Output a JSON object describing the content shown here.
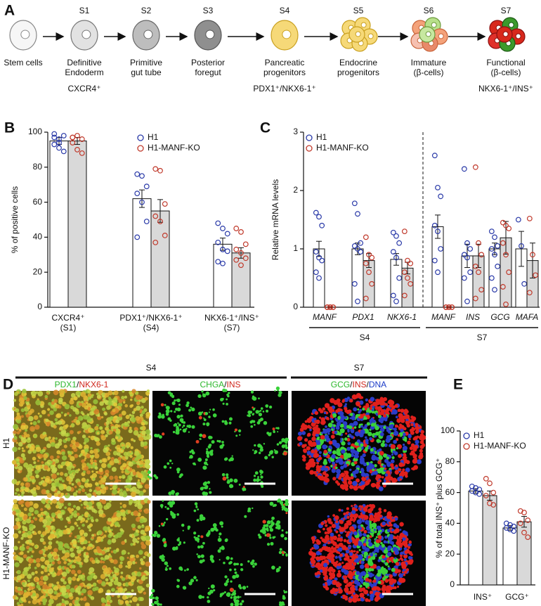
{
  "panel_a": {
    "label": "A",
    "stages": [
      {
        "name": [
          "Stem cells"
        ]
      },
      {
        "stage": "S1",
        "name": [
          "Definitive",
          "Endoderm"
        ],
        "marker": "CXCR4⁺"
      },
      {
        "stage": "S2",
        "name": [
          "Primitive",
          "gut tube"
        ]
      },
      {
        "stage": "S3",
        "name": [
          "Posterior",
          "foregut"
        ]
      },
      {
        "stage": "S4",
        "name": [
          "Pancreatic",
          "progenitors"
        ],
        "marker": "PDX1⁺/NKX6-1⁺"
      },
      {
        "stage": "S5",
        "name": [
          "Endocrine",
          "progenitors"
        ]
      },
      {
        "stage": "S6",
        "name": [
          "Immature",
          "(β-cells)"
        ]
      },
      {
        "stage": "S7",
        "name": [
          "Functional",
          "(β-cells)"
        ],
        "marker": "NKX6-1⁺/INS⁺"
      }
    ]
  },
  "chart_data": [
    {
      "type": "bar",
      "panel_label": "B",
      "ylabel": "% of positive cells",
      "categories": [
        [
          "CXCR4⁺",
          "(S1)"
        ],
        [
          "PDX1⁺/NKX6-1⁺",
          "(S4)"
        ],
        [
          "NKX6-1⁺/INS⁺",
          "(S7)"
        ]
      ],
      "series": [
        {
          "name": "H1",
          "color": "#2a3aa8",
          "fill": "#ffffff",
          "values": [
            95,
            62,
            36
          ],
          "errors": [
            2,
            5,
            3.5
          ],
          "points": [
            [
              93,
              96,
              98,
              99,
              91,
              89,
              97,
              94
            ],
            [
              76,
              75,
              69,
              65,
              60,
              49,
              40
            ],
            [
              48,
              45,
              42,
              37,
              33,
              32,
              26,
              25
            ]
          ]
        },
        {
          "name": "H1-MANF-KO",
          "color": "#c0392b",
          "fill": "#d9d9d9",
          "values": [
            95,
            55,
            31
          ],
          "errors": [
            2,
            6.5,
            3
          ],
          "points": [
            [
              97,
              98,
              96,
              94,
              90,
              88,
              97
            ],
            [
              79,
              78,
              59,
              52,
              49,
              41,
              37
            ],
            [
              45,
              43,
              36,
              33,
              31,
              28,
              27,
              24
            ]
          ]
        }
      ],
      "ylim": [
        0,
        100
      ],
      "yticks": [
        0,
        20,
        40,
        60,
        80,
        100
      ],
      "legend": "upper right"
    },
    {
      "type": "bar",
      "panel_label": "C",
      "ylabel": "Relative mRNA levels",
      "categories": [
        [
          "MANF"
        ],
        [
          "PDX1"
        ],
        [
          "NKX6-1"
        ],
        [
          "MANF"
        ],
        [
          "INS"
        ],
        [
          "GCG"
        ],
        [
          "MAFA"
        ]
      ],
      "groups": [
        "S4",
        "S7"
      ],
      "series": [
        {
          "name": "H1",
          "color": "#2a3aa8",
          "fill": "#ffffff",
          "values": [
            1.0,
            1.0,
            0.82,
            1.38,
            0.88,
            1.0,
            1.0
          ],
          "errors": [
            0.13,
            0.1,
            0.1,
            0.2,
            0.2,
            0.1,
            0.3
          ],
          "points": [
            [
              1.62,
              1.55,
              1.4,
              0.95,
              0.85,
              0.8,
              0.6,
              0.5
            ],
            [
              1.78,
              1.6,
              1.1,
              1.05,
              1.0,
              0.95,
              0.4,
              0.1
            ],
            [
              1.28,
              1.22,
              1.1,
              0.95,
              0.85,
              0.5,
              0.2,
              0.1
            ],
            [
              2.6,
              2.05,
              1.9,
              1.4,
              1.3,
              1.0,
              0.8,
              0.6
            ],
            [
              2.37,
              1.1,
              1.0,
              0.9,
              0.85,
              0.6,
              0.5,
              0.1
            ],
            [
              1.3,
              1.2,
              1.05,
              1.0,
              0.9,
              0.7,
              0.5,
              0.3
            ],
            [
              1.5,
              1.05,
              0.4
            ]
          ]
        },
        {
          "name": "H1-MANF-KO",
          "color": "#c0392b",
          "fill": "#d9d9d9",
          "values": [
            0,
            0.8,
            0.67,
            0,
            0.88,
            1.19,
            0.8
          ],
          "errors": [
            0.01,
            0.12,
            0.1,
            0.01,
            0.2,
            0.28,
            0.3
          ],
          "points": [
            [
              0,
              0,
              0,
              0,
              0,
              0,
              0,
              0
            ],
            [
              1.2,
              0.9,
              0.85,
              0.75,
              0.6,
              0.4,
              0.15
            ],
            [
              1.3,
              0.8,
              0.75,
              0.6,
              0.5,
              0.4,
              0.2
            ],
            [
              0,
              0,
              0,
              0,
              0,
              0,
              0,
              0
            ],
            [
              2.4,
              1.1,
              0.9,
              0.7,
              0.6,
              0.3,
              0.15
            ],
            [
              1.45,
              1.4,
              1.35,
              1.1,
              0.9,
              0.6,
              0.35,
              0.05
            ],
            [
              1.52,
              0.9,
              0.55,
              0.25
            ]
          ]
        }
      ],
      "ylim": [
        0,
        3
      ],
      "yticks": [
        0,
        1,
        2,
        3
      ],
      "legend": "upper left"
    },
    {
      "type": "bar",
      "panel_label": "E",
      "ylabel": "% of total INS⁺ plus GCG⁺",
      "categories": [
        [
          "INS⁺"
        ],
        [
          "GCG⁺"
        ]
      ],
      "series": [
        {
          "name": "H1",
          "color": "#2a3aa8",
          "fill": "#ffffff",
          "values": [
            61,
            37
          ],
          "errors": [
            1.5,
            1.5
          ],
          "points": [
            [
              64,
              63,
              62,
              61,
              60,
              59
            ],
            [
              40,
              39,
              38,
              37,
              36,
              35
            ]
          ]
        },
        {
          "name": "H1-MANF-KO",
          "color": "#c0392b",
          "fill": "#d9d9d9",
          "values": [
            58,
            41
          ],
          "errors": [
            3,
            3.5
          ],
          "points": [
            [
              69,
              66,
              60,
              58,
              53,
              52
            ],
            [
              48,
              47,
              42,
              40,
              34,
              31
            ]
          ]
        }
      ],
      "ylim": [
        0,
        100
      ],
      "yticks": [
        0,
        20,
        40,
        60,
        80,
        100
      ],
      "legend": "upper left"
    }
  ],
  "panel_d": {
    "label": "D",
    "groups": [
      "S4",
      "S7"
    ],
    "columns": [
      [
        "PDX1",
        "/",
        "NKX6-1"
      ],
      [
        "CHGA",
        "/",
        "INS"
      ],
      [
        "GCG",
        "/",
        "INS",
        "/",
        "DNA"
      ]
    ],
    "rows": [
      "H1",
      "H1-MANF-KO"
    ]
  }
}
